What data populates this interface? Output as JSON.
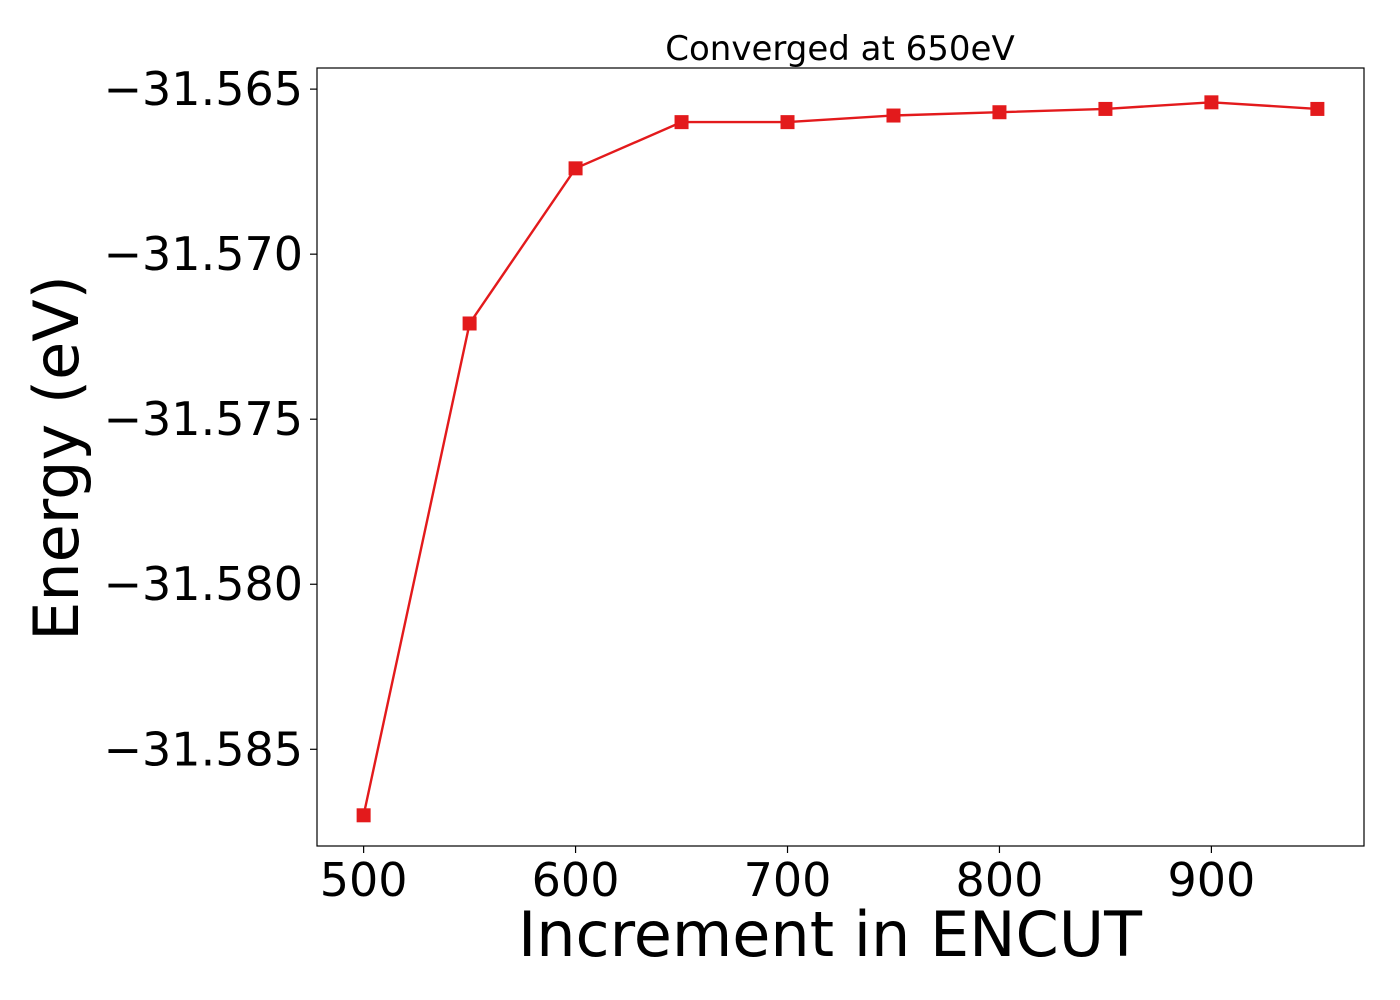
{
  "chart_data": {
    "type": "line",
    "title": "Converged at 650eV",
    "xlabel": "Increment in ENCUT",
    "ylabel": "Energy (eV)",
    "xlim": [
      478,
      972
    ],
    "ylim": [
      -31.58793,
      -31.56436
    ],
    "x_ticks": [
      500,
      600,
      700,
      800,
      900
    ],
    "x_tick_labels": [
      "500",
      "600",
      "700",
      "800",
      "900"
    ],
    "y_ticks": [
      -31.565,
      -31.57,
      -31.575,
      -31.58,
      -31.585
    ],
    "y_tick_labels": [
      "−31.565",
      "−31.570",
      "−31.575",
      "−31.580",
      "−31.585"
    ],
    "grid": false,
    "series": [
      {
        "color": "#e31a1c",
        "marker": "square",
        "x": [
          500,
          550,
          600,
          650,
          700,
          750,
          800,
          850,
          900,
          950
        ],
        "y": [
          -31.587,
          -31.5721,
          -31.5674,
          -31.566,
          -31.566,
          -31.5658,
          -31.5657,
          -31.5656,
          -31.5654,
          -31.5656
        ]
      }
    ]
  }
}
